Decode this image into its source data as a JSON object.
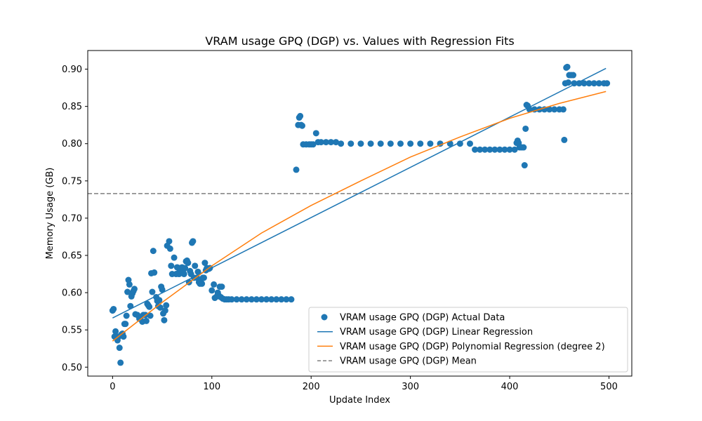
{
  "chart_data": {
    "type": "scatter",
    "title": "VRAM usage GPQ (DGP) vs. Values with Regression Fits",
    "xlabel": "Update Index",
    "ylabel": "Memory Usage (GB)",
    "xlim": [
      -25,
      523
    ],
    "ylim": [
      0.488,
      0.925
    ],
    "xticks": [
      0,
      100,
      200,
      300,
      400,
      500
    ],
    "yticks": [
      0.5,
      0.55,
      0.6,
      0.65,
      0.7,
      0.75,
      0.8,
      0.85,
      0.9
    ],
    "xtick_labels": [
      "0",
      "100",
      "200",
      "300",
      "400",
      "500"
    ],
    "ytick_labels": [
      "0.50",
      "0.55",
      "0.60",
      "0.65",
      "0.70",
      "0.75",
      "0.80",
      "0.85",
      "0.90"
    ],
    "grid": false,
    "legend_position": "lower-right",
    "colors": {
      "scatter": "#1f77b4",
      "linear": "#1f77b4",
      "poly": "#ff7f0e",
      "mean": "#7f7f7f"
    },
    "series": [
      {
        "name": "VRAM usage GPQ (DGP) Actual Data",
        "kind": "scatter",
        "points": [
          [
            0,
            0.576
          ],
          [
            1,
            0.578
          ],
          [
            2,
            0.541
          ],
          [
            3,
            0.548
          ],
          [
            5,
            0.536
          ],
          [
            6,
            0.541
          ],
          [
            7,
            0.526
          ],
          [
            8,
            0.506
          ],
          [
            9,
            0.544
          ],
          [
            10,
            0.545
          ],
          [
            11,
            0.541
          ],
          [
            12,
            0.558
          ],
          [
            13,
            0.558
          ],
          [
            14,
            0.569
          ],
          [
            15,
            0.601
          ],
          [
            16,
            0.617
          ],
          [
            17,
            0.611
          ],
          [
            18,
            0.582
          ],
          [
            19,
            0.595
          ],
          [
            20,
            0.599
          ],
          [
            21,
            0.602
          ],
          [
            22,
            0.605
          ],
          [
            23,
            0.571
          ],
          [
            25,
            0.57
          ],
          [
            27,
            0.565
          ],
          [
            28,
            0.566
          ],
          [
            30,
            0.561
          ],
          [
            31,
            0.57
          ],
          [
            33,
            0.57
          ],
          [
            34,
            0.562
          ],
          [
            35,
            0.585
          ],
          [
            36,
            0.583
          ],
          [
            37,
            0.581
          ],
          [
            38,
            0.569
          ],
          [
            39,
            0.626
          ],
          [
            40,
            0.601
          ],
          [
            41,
            0.656
          ],
          [
            42,
            0.627
          ],
          [
            44,
            0.594
          ],
          [
            45,
            0.589
          ],
          [
            46,
            0.582
          ],
          [
            47,
            0.59
          ],
          [
            48,
            0.58
          ],
          [
            49,
            0.608
          ],
          [
            50,
            0.604
          ],
          [
            51,
            0.572
          ],
          [
            52,
            0.563
          ],
          [
            53,
            0.576
          ],
          [
            54,
            0.583
          ],
          [
            55,
            0.663
          ],
          [
            57,
            0.669
          ],
          [
            58,
            0.659
          ],
          [
            59,
            0.636
          ],
          [
            60,
            0.625
          ],
          [
            62,
            0.647
          ],
          [
            64,
            0.625
          ],
          [
            65,
            0.634
          ],
          [
            66,
            0.626
          ],
          [
            67,
            0.625
          ],
          [
            68,
            0.633
          ],
          [
            70,
            0.634
          ],
          [
            71,
            0.628
          ],
          [
            72,
            0.625
          ],
          [
            73,
            0.633
          ],
          [
            74,
            0.642
          ],
          [
            75,
            0.643
          ],
          [
            76,
            0.64
          ],
          [
            77,
            0.614
          ],
          [
            78,
            0.629
          ],
          [
            79,
            0.625
          ],
          [
            80,
            0.667
          ],
          [
            81,
            0.669
          ],
          [
            82,
            0.62
          ],
          [
            83,
            0.636
          ],
          [
            85,
            0.62
          ],
          [
            86,
            0.628
          ],
          [
            87,
            0.614
          ],
          [
            88,
            0.612
          ],
          [
            89,
            0.617
          ],
          [
            90,
            0.612
          ],
          [
            91,
            0.62
          ],
          [
            92,
            0.62
          ],
          [
            93,
            0.64
          ],
          [
            94,
            0.63
          ],
          [
            95,
            0.633
          ],
          [
            97,
            0.632
          ],
          [
            98,
            0.633
          ],
          [
            100,
            0.603
          ],
          [
            102,
            0.611
          ],
          [
            103,
            0.593
          ],
          [
            105,
            0.595
          ],
          [
            106,
            0.6
          ],
          [
            107,
            0.596
          ],
          [
            108,
            0.608
          ],
          [
            109,
            0.594
          ],
          [
            110,
            0.608
          ],
          [
            111,
            0.592
          ],
          [
            113,
            0.591
          ],
          [
            115,
            0.591
          ],
          [
            117,
            0.591
          ],
          [
            120,
            0.591
          ],
          [
            125,
            0.591
          ],
          [
            130,
            0.591
          ],
          [
            135,
            0.591
          ],
          [
            140,
            0.591
          ],
          [
            145,
            0.591
          ],
          [
            150,
            0.591
          ],
          [
            155,
            0.591
          ],
          [
            160,
            0.591
          ],
          [
            165,
            0.591
          ],
          [
            170,
            0.591
          ],
          [
            175,
            0.591
          ],
          [
            180,
            0.591
          ],
          [
            185,
            0.765
          ],
          [
            187,
            0.825
          ],
          [
            188,
            0.835
          ],
          [
            189,
            0.837
          ],
          [
            190,
            0.825
          ],
          [
            191,
            0.824
          ],
          [
            192,
            0.799
          ],
          [
            195,
            0.799
          ],
          [
            198,
            0.799
          ],
          [
            200,
            0.799
          ],
          [
            202,
            0.799
          ],
          [
            205,
            0.814
          ],
          [
            207,
            0.802
          ],
          [
            210,
            0.802
          ],
          [
            215,
            0.802
          ],
          [
            220,
            0.802
          ],
          [
            225,
            0.802
          ],
          [
            230,
            0.8
          ],
          [
            240,
            0.8
          ],
          [
            250,
            0.8
          ],
          [
            260,
            0.8
          ],
          [
            270,
            0.8
          ],
          [
            280,
            0.8
          ],
          [
            290,
            0.8
          ],
          [
            300,
            0.8
          ],
          [
            310,
            0.8
          ],
          [
            320,
            0.8
          ],
          [
            330,
            0.8
          ],
          [
            340,
            0.8
          ],
          [
            350,
            0.8
          ],
          [
            360,
            0.8
          ],
          [
            365,
            0.792
          ],
          [
            370,
            0.792
          ],
          [
            375,
            0.792
          ],
          [
            380,
            0.792
          ],
          [
            385,
            0.792
          ],
          [
            390,
            0.792
          ],
          [
            395,
            0.792
          ],
          [
            400,
            0.792
          ],
          [
            405,
            0.792
          ],
          [
            407,
            0.801
          ],
          [
            408,
            0.804
          ],
          [
            409,
            0.801
          ],
          [
            410,
            0.795
          ],
          [
            412,
            0.795
          ],
          [
            414,
            0.795
          ],
          [
            415,
            0.771
          ],
          [
            416,
            0.82
          ],
          [
            417,
            0.852
          ],
          [
            418,
            0.851
          ],
          [
            420,
            0.846
          ],
          [
            425,
            0.846
          ],
          [
            430,
            0.846
          ],
          [
            435,
            0.846
          ],
          [
            440,
            0.846
          ],
          [
            445,
            0.846
          ],
          [
            450,
            0.846
          ],
          [
            454,
            0.846
          ],
          [
            455,
            0.805
          ],
          [
            456,
            0.881
          ],
          [
            457,
            0.902
          ],
          [
            458,
            0.903
          ],
          [
            459,
            0.882
          ],
          [
            460,
            0.892
          ],
          [
            462,
            0.892
          ],
          [
            464,
            0.892
          ],
          [
            465,
            0.881
          ],
          [
            470,
            0.881
          ],
          [
            475,
            0.881
          ],
          [
            480,
            0.881
          ],
          [
            485,
            0.881
          ],
          [
            490,
            0.881
          ],
          [
            495,
            0.881
          ],
          [
            498,
            0.881
          ]
        ]
      },
      {
        "name": "VRAM usage GPQ (DGP) Linear Regression",
        "kind": "line",
        "points": [
          [
            0,
            0.566
          ],
          [
            497,
            0.901
          ]
        ]
      },
      {
        "name": "VRAM usage GPQ (DGP) Polynomial Regression (degree 2)",
        "kind": "line",
        "points": [
          [
            0,
            0.535
          ],
          [
            50,
            0.587
          ],
          [
            100,
            0.636
          ],
          [
            150,
            0.68
          ],
          [
            200,
            0.717
          ],
          [
            250,
            0.75
          ],
          [
            300,
            0.782
          ],
          [
            350,
            0.809
          ],
          [
            400,
            0.834
          ],
          [
            450,
            0.854
          ],
          [
            497,
            0.87
          ]
        ]
      },
      {
        "name": "VRAM usage GPQ (DGP) Mean",
        "kind": "hline",
        "value": 0.733
      }
    ]
  }
}
